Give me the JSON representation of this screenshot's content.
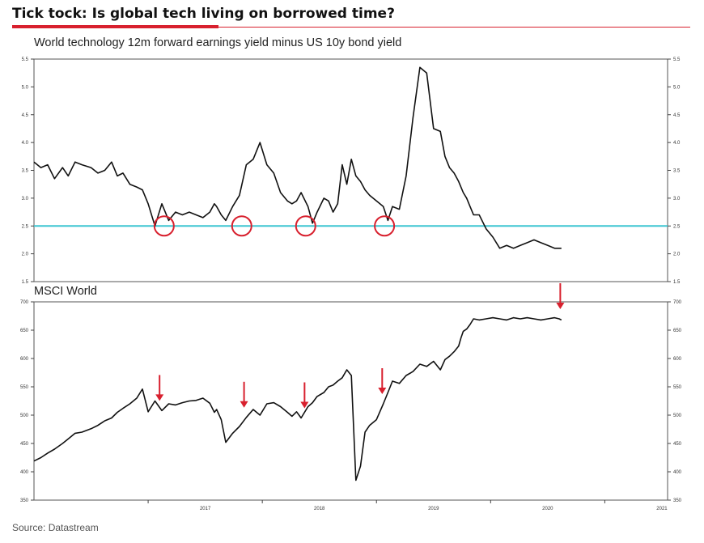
{
  "headline": "Tick tock: Is global tech living on borrowed time?",
  "source": "Source: Datastream",
  "colors": {
    "accent": "#d8202e",
    "threshold_line": "#3fc6d2",
    "series": "#111111",
    "marker": "#d8202e"
  },
  "chart_data": [
    {
      "type": "line",
      "title": "World technology 12m forward earnings yield minus US 10y bond yield",
      "ylim": [
        1.5,
        5.5
      ],
      "yticks": [
        "1.5",
        "2.0",
        "2.5",
        "3.0",
        "3.5",
        "4.0",
        "4.5",
        "5.0",
        "5.5"
      ],
      "xlim": [
        2016.0,
        2021.55
      ],
      "reference_line": 2.5,
      "grid": false,
      "series": [
        {
          "x": [
            2016.0,
            2016.06,
            2016.12,
            2016.18,
            2016.25,
            2016.3,
            2016.36,
            2016.42,
            2016.5,
            2016.56,
            2016.62,
            2016.68,
            2016.73,
            2016.78,
            2016.84,
            2016.9,
            2016.95,
            2017.0,
            2017.06,
            2017.12,
            2017.18,
            2017.24,
            2017.3,
            2017.36,
            2017.42,
            2017.48,
            2017.54,
            2017.58,
            2017.6,
            2017.64,
            2017.68,
            2017.74,
            2017.8,
            2017.86,
            2017.92,
            2017.98,
            2018.04,
            2018.1,
            2018.16,
            2018.22,
            2018.26,
            2018.3,
            2018.34,
            2018.4,
            2018.44,
            2018.48,
            2018.54,
            2018.58,
            2018.62,
            2018.66,
            2018.7,
            2018.74,
            2018.78,
            2018.82,
            2018.86,
            2018.9,
            2018.94,
            2019.0,
            2019.06,
            2019.1,
            2019.14,
            2019.2,
            2019.26,
            2019.32,
            2019.38,
            2019.44,
            2019.5,
            2019.56,
            2019.6,
            2019.64,
            2019.68,
            2019.72,
            2019.74,
            2019.76,
            2019.79,
            2019.82,
            2019.85,
            2019.9,
            2019.96,
            2020.02,
            2020.08,
            2020.14,
            2020.2,
            2020.26,
            2020.32,
            2020.38,
            2020.44,
            2020.5,
            2020.56,
            2020.6,
            2020.62
          ],
          "values": [
            3.65,
            3.55,
            3.6,
            3.35,
            3.55,
            3.4,
            3.65,
            3.6,
            3.55,
            3.45,
            3.5,
            3.65,
            3.4,
            3.45,
            3.25,
            3.2,
            3.15,
            2.9,
            2.5,
            2.9,
            2.6,
            2.75,
            2.7,
            2.75,
            2.7,
            2.65,
            2.75,
            2.9,
            2.85,
            2.7,
            2.6,
            2.85,
            3.05,
            3.6,
            3.7,
            4.0,
            3.6,
            3.45,
            3.1,
            2.95,
            2.9,
            2.95,
            3.1,
            2.85,
            2.55,
            2.75,
            3.0,
            2.95,
            2.75,
            2.9,
            3.6,
            3.25,
            3.7,
            3.4,
            3.3,
            3.15,
            3.05,
            2.95,
            2.85,
            2.6,
            2.85,
            2.8,
            3.4,
            4.45,
            5.35,
            5.25,
            4.25,
            4.2,
            3.75,
            3.55,
            3.45,
            3.3,
            3.2,
            3.1,
            3.0,
            2.85,
            2.7,
            2.7,
            2.45,
            2.3,
            2.1,
            2.15,
            2.1,
            2.15,
            2.2,
            2.25,
            2.2,
            2.15,
            2.1,
            2.1,
            2.1
          ]
        }
      ],
      "circles_at": [
        2017.14,
        2017.82,
        2018.38,
        2019.07
      ]
    },
    {
      "type": "line",
      "title": "MSCI World",
      "ylim": [
        350,
        700
      ],
      "yticks": [
        "350",
        "400",
        "450",
        "500",
        "550",
        "600",
        "650",
        "700"
      ],
      "xlim": [
        2016.0,
        2021.55
      ],
      "xticks": [
        "2017",
        "2018",
        "2019",
        "2020",
        "2021"
      ],
      "grid": false,
      "series": [
        {
          "x": [
            2016.0,
            2016.06,
            2016.12,
            2016.18,
            2016.25,
            2016.3,
            2016.36,
            2016.42,
            2016.5,
            2016.56,
            2016.62,
            2016.68,
            2016.73,
            2016.78,
            2016.84,
            2016.9,
            2016.95,
            2017.0,
            2017.06,
            2017.12,
            2017.18,
            2017.24,
            2017.3,
            2017.36,
            2017.42,
            2017.48,
            2017.54,
            2017.58,
            2017.6,
            2017.64,
            2017.68,
            2017.74,
            2017.8,
            2017.86,
            2017.92,
            2017.98,
            2018.04,
            2018.1,
            2018.16,
            2018.22,
            2018.26,
            2018.3,
            2018.34,
            2018.4,
            2018.44,
            2018.48,
            2018.54,
            2018.58,
            2018.62,
            2018.66,
            2018.7,
            2018.74,
            2018.78,
            2018.82,
            2018.86,
            2018.9,
            2018.94,
            2019.0,
            2019.06,
            2019.1,
            2019.14,
            2019.2,
            2019.26,
            2019.32,
            2019.38,
            2019.44,
            2019.5,
            2019.56,
            2019.6,
            2019.64,
            2019.68,
            2019.72,
            2019.74,
            2019.76,
            2019.79,
            2019.82,
            2019.85,
            2019.9,
            2019.96,
            2020.02,
            2020.08,
            2020.14,
            2020.2,
            2020.26,
            2020.32,
            2020.38,
            2020.44,
            2020.5,
            2020.56,
            2020.6,
            2020.62
          ],
          "values": [
            419,
            425,
            433,
            440,
            450,
            458,
            468,
            470,
            476,
            482,
            490,
            495,
            505,
            512,
            520,
            530,
            546,
            506,
            525,
            508,
            520,
            518,
            522,
            525,
            526,
            530,
            521,
            505,
            510,
            492,
            452,
            468,
            480,
            496,
            510,
            500,
            520,
            522,
            515,
            505,
            498,
            506,
            495,
            515,
            522,
            533,
            540,
            550,
            553,
            560,
            566,
            580,
            570,
            385,
            410,
            470,
            482,
            492,
            520,
            540,
            560,
            556,
            570,
            577,
            590,
            586,
            595,
            580,
            598,
            604,
            612,
            622,
            636,
            648,
            652,
            660,
            670,
            668,
            670,
            672,
            670,
            668,
            672,
            670,
            672,
            670,
            668,
            670,
            672,
            670,
            668
          ]
        }
      ],
      "arrows_at": [
        2017.1,
        2017.84,
        2018.37,
        2019.05,
        2020.61
      ]
    }
  ]
}
